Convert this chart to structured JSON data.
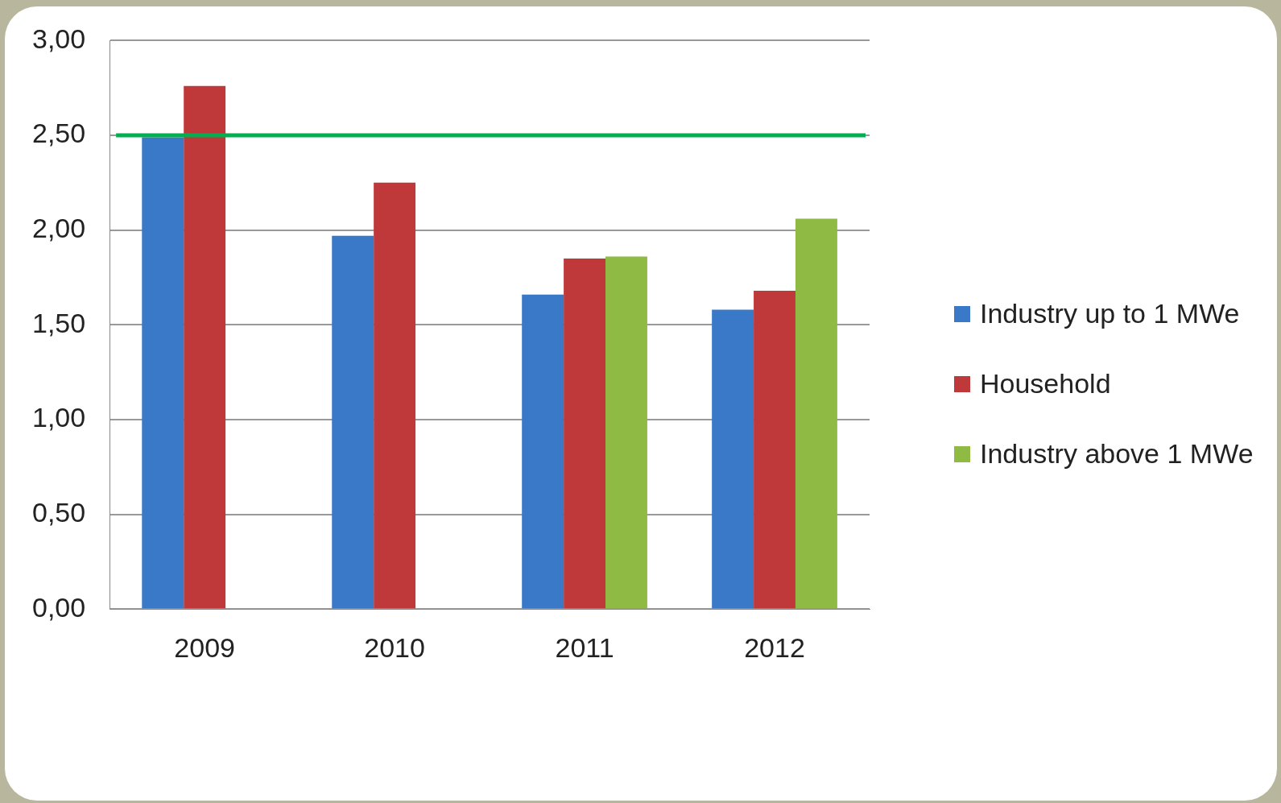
{
  "chart_data": {
    "type": "bar",
    "categories": [
      "2009",
      "2010",
      "2011",
      "2012"
    ],
    "series": [
      {
        "name": "Industry up to 1 MWe",
        "color": "#3a78c8",
        "values": [
          2.49,
          1.97,
          1.66,
          1.58
        ]
      },
      {
        "name": "Household",
        "color": "#c0393a",
        "values": [
          2.76,
          2.25,
          1.85,
          1.68
        ]
      },
      {
        "name": "Industry above 1 MWe",
        "color": "#8fba44",
        "values": [
          null,
          null,
          1.86,
          2.06
        ]
      }
    ],
    "ylim": [
      0,
      3
    ],
    "yticks": [
      {
        "value": 0,
        "label": "0,00"
      },
      {
        "value": 0.5,
        "label": "0,50"
      },
      {
        "value": 1,
        "label": "1,00"
      },
      {
        "value": 1.5,
        "label": "1,50"
      },
      {
        "value": 2,
        "label": "2,00"
      },
      {
        "value": 2.5,
        "label": "2,50"
      },
      {
        "value": 3,
        "label": "3,00"
      }
    ],
    "ref_lines": [
      {
        "axis": "y",
        "value": 2.5,
        "color": "#00b050",
        "line_style": "solid"
      }
    ],
    "grid": "y",
    "legend": "right"
  }
}
